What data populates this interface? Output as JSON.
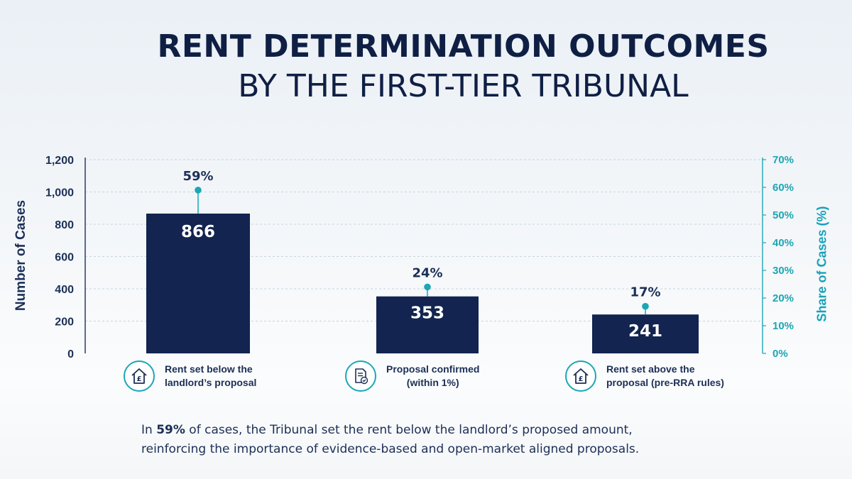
{
  "title": {
    "line1": "RENT DETERMINATION OUTCOMES",
    "line2": "BY THE FIRST-TIER TRIBUNAL"
  },
  "chart_data": {
    "type": "bar",
    "categories": [
      "Rent set below the\nlandlord’s proposal",
      "Proposal confirmed\n(within 1%)",
      "Rent set above the\nproposal (pre-RRA rules)"
    ],
    "values": [
      866,
      353,
      241
    ],
    "value_labels": [
      "866",
      "353",
      "241"
    ],
    "shares": [
      59,
      24,
      17
    ],
    "share_labels": [
      "59%",
      "24%",
      "17%"
    ],
    "category_icons": [
      "house-pound-icon",
      "document-check-icon",
      "house-pound-icon"
    ],
    "ylabel": "Number of Cases",
    "ylabel_right": "Share of Cases (%)",
    "ylim": [
      0,
      1200
    ],
    "yticks": [
      "0",
      "200",
      "400",
      "600",
      "800",
      "1,000",
      "1,200"
    ],
    "ylim_right": [
      0,
      70
    ],
    "yticks_right": [
      "0%",
      "10%",
      "20%",
      "30%",
      "40%",
      "50%",
      "60%",
      "70%"
    ],
    "grid": true,
    "colors": {
      "bar": "#12244f",
      "accent": "#1ba7b4"
    }
  },
  "footnote": {
    "prefix": "In ",
    "highlight": "59%",
    "rest": " of cases, the Tribunal set the rent below the landlord’s proposed amount,",
    "line2": "reinforcing the importance of evidence-based and open-market aligned proposals."
  }
}
